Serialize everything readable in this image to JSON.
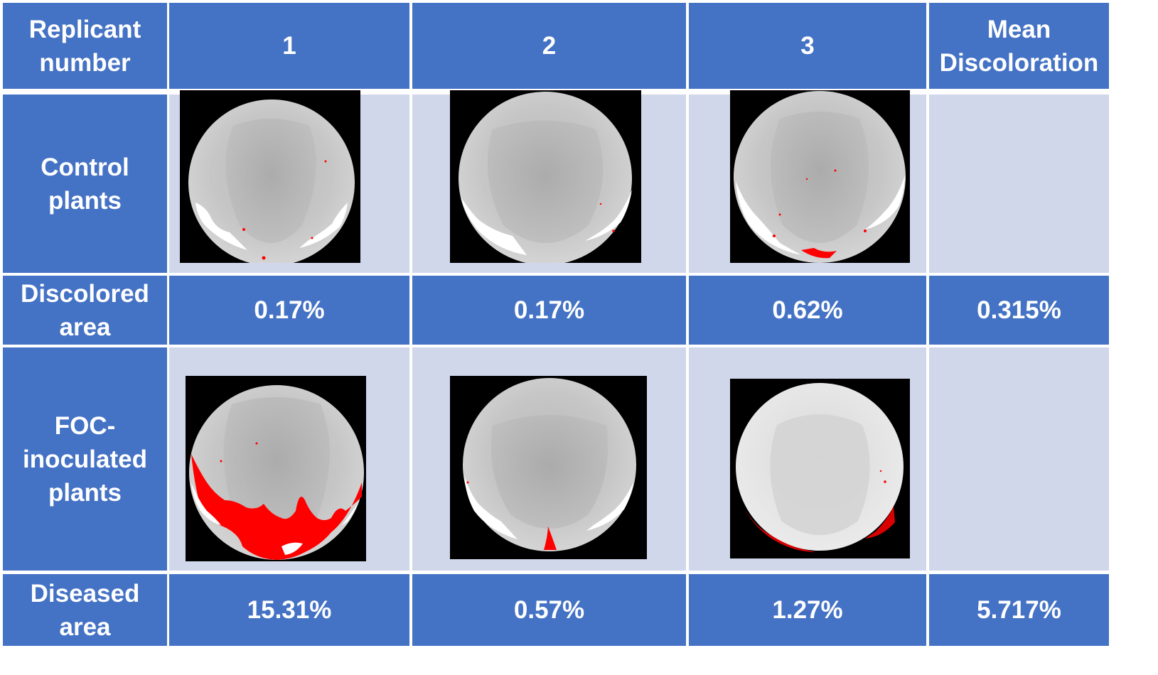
{
  "header": {
    "row_label": "Replicant number",
    "col1": "1",
    "col2": "2",
    "col3": "3",
    "col4": "Mean Discoloration"
  },
  "control": {
    "label": "Control plants",
    "result_label": "Discolored area",
    "values": [
      "0.17%",
      "0.17%",
      "0.62%"
    ],
    "mean": "0.315%"
  },
  "foc": {
    "label": "FOC-inoculated plants",
    "result_label": "Diseased area",
    "values": [
      "15.31%",
      "0.57%",
      "1.27%"
    ],
    "mean": "5.717%"
  },
  "colors": {
    "header_blue": "#4472c4",
    "image_row_bg": "#d0d7eb",
    "discoloration_red": "#ff0000"
  }
}
